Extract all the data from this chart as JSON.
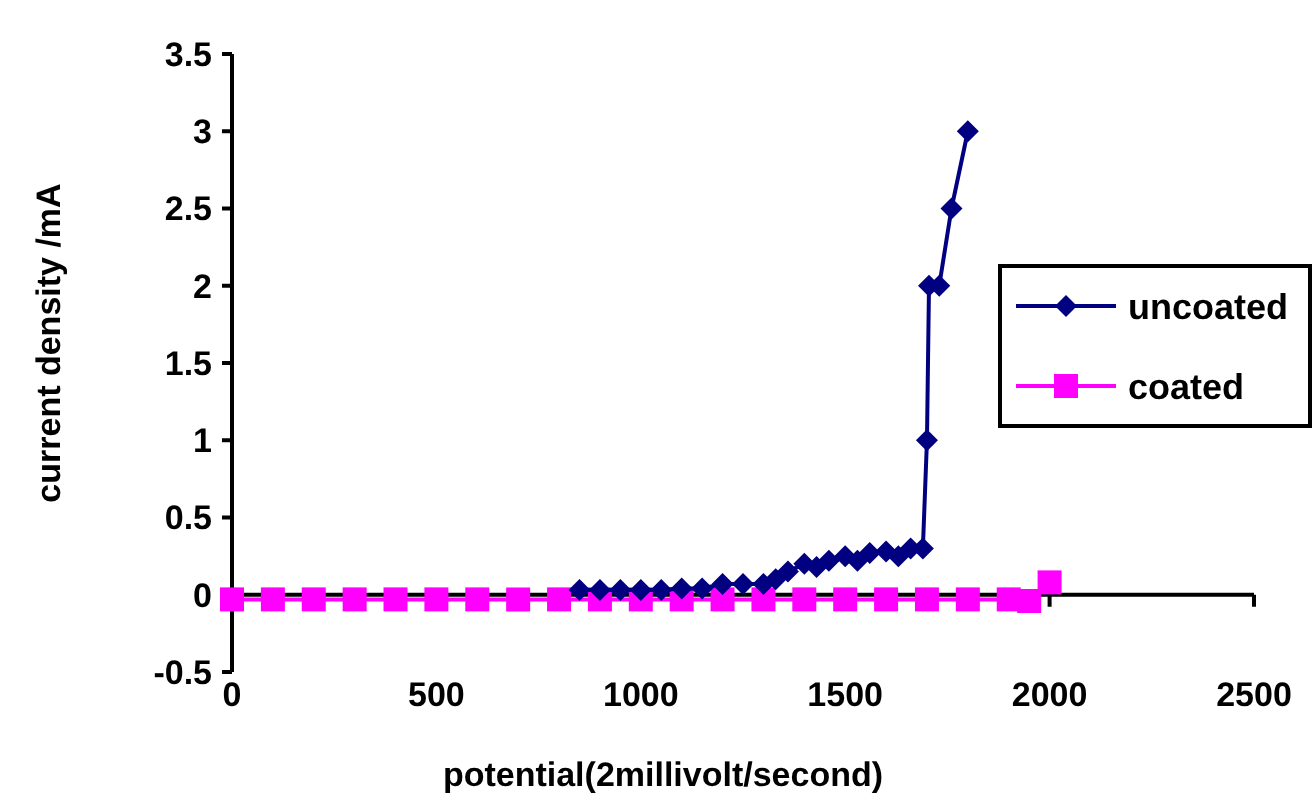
{
  "chart_data": {
    "type": "line",
    "xlabel": "potential(2millivolt/second)",
    "ylabel": "current density /mA",
    "xlim": [
      0,
      2500
    ],
    "xticks": [
      0,
      500,
      1000,
      1500,
      2000,
      2500
    ],
    "ylim": [
      -0.5,
      3.5
    ],
    "yticks": [
      -0.5,
      0,
      0.5,
      1,
      1.5,
      2,
      2.5,
      3,
      3.5
    ],
    "legend": "right",
    "grid": false,
    "line_style": "solid",
    "series": [
      {
        "name": "uncoated",
        "color": "#000080",
        "marker": "diamond",
        "x": [
          850,
          900,
          950,
          1000,
          1050,
          1100,
          1150,
          1200,
          1250,
          1300,
          1330,
          1360,
          1400,
          1430,
          1460,
          1500,
          1530,
          1560,
          1600,
          1630,
          1660,
          1690,
          1700,
          1705,
          1730,
          1760,
          1800
        ],
        "values": [
          0.03,
          0.03,
          0.03,
          0.03,
          0.03,
          0.04,
          0.04,
          0.07,
          0.07,
          0.07,
          0.1,
          0.15,
          0.2,
          0.18,
          0.22,
          0.25,
          0.22,
          0.27,
          0.28,
          0.25,
          0.3,
          0.3,
          1.0,
          2.0,
          2.0,
          2.5,
          3.0
        ]
      },
      {
        "name": "coated",
        "color": "#ff00ff",
        "marker": "square",
        "x": [
          0,
          100,
          200,
          300,
          400,
          500,
          600,
          700,
          800,
          900,
          1000,
          1100,
          1200,
          1300,
          1400,
          1500,
          1600,
          1700,
          1800,
          1900,
          1950,
          2000
        ],
        "values": [
          -0.03,
          -0.03,
          -0.03,
          -0.03,
          -0.03,
          -0.03,
          -0.03,
          -0.03,
          -0.03,
          -0.03,
          -0.03,
          -0.03,
          -0.03,
          -0.03,
          -0.03,
          -0.03,
          -0.03,
          -0.03,
          -0.03,
          -0.03,
          -0.04,
          0.08
        ]
      }
    ]
  }
}
